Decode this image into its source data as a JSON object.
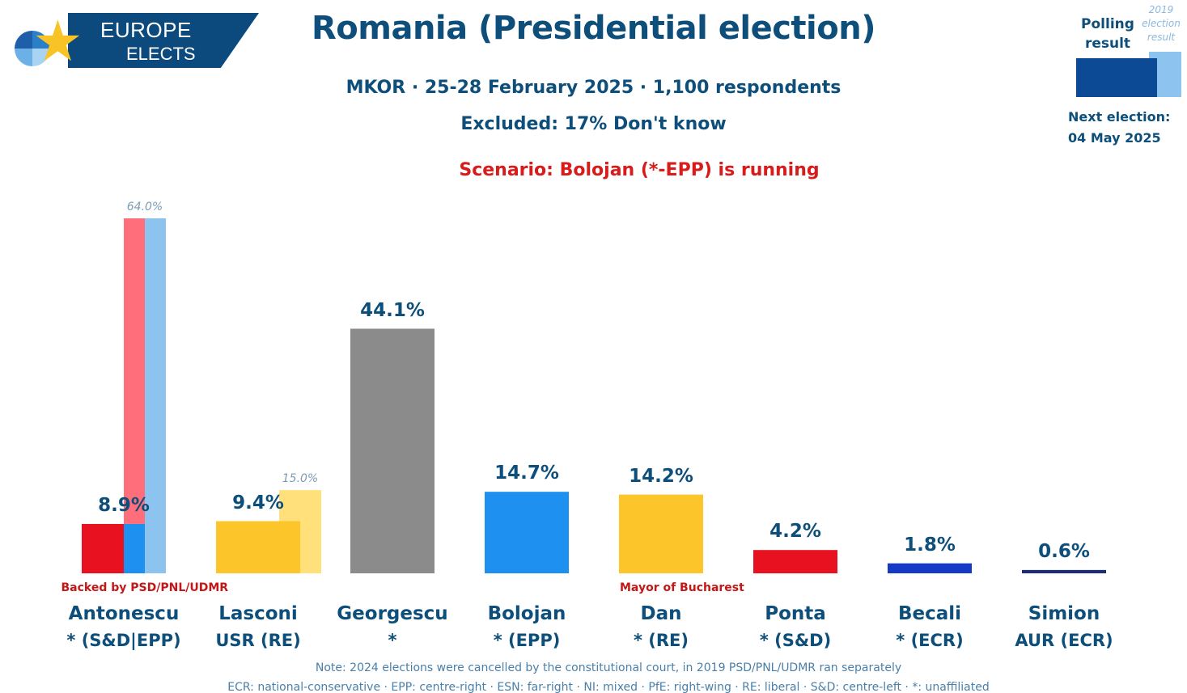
{
  "logo": {
    "line1": "EUROPE",
    "line2": "ELECTS"
  },
  "header": {
    "title": "Romania (Presidential election)",
    "subtitle": "MKOR · 25-28 February 2025 · 1,100 respondents",
    "excluded": "Excluded: 17% Don't know",
    "scenario": "Scenario: Bolojan (*-EPP) is running"
  },
  "legend": {
    "polling_label": "Polling result",
    "prior_label": "2019 election result",
    "next_election_label": "Next election:",
    "next_election_date": "04 May 2025",
    "polling_color": "#0c4a95",
    "prior_color": "#8cc4ef"
  },
  "chart_data": {
    "type": "bar",
    "ylim": [
      0,
      64
    ],
    "categories": [
      "Antonescu",
      "Lasconi",
      "Georgescu",
      "Bolojan",
      "Dan",
      "Ponta",
      "Becali",
      "Simion"
    ],
    "parties": [
      "* (S&D|EPP)",
      "USR (RE)",
      "*",
      "* (EPP)",
      "* (RE)",
      "* (S&D)",
      "* (ECR)",
      "AUR (ECR)"
    ],
    "values": [
      8.9,
      9.4,
      44.1,
      14.7,
      14.2,
      4.2,
      1.8,
      0.6
    ],
    "value_labels": [
      "8.9%",
      "9.4%",
      "44.1%",
      "14.7%",
      "14.2%",
      "4.2%",
      "1.8%",
      "0.6%"
    ],
    "colors": [
      [
        "#e8111f",
        "#1e90f0"
      ],
      [
        "#fcc52a"
      ],
      [
        "#8b8b8b"
      ],
      [
        "#1e90f0"
      ],
      [
        "#fcc52a"
      ],
      [
        "#e8111f"
      ],
      [
        "#1638c6"
      ],
      [
        "#1c2b7a"
      ]
    ],
    "previous": [
      {
        "category": "Antonescu",
        "value": 64.0,
        "label": "64.0%",
        "colors": [
          "#ff6f7b",
          "#8cc4ef"
        ]
      },
      {
        "category": "Lasconi",
        "value": 15.0,
        "label": "15.0%",
        "colors": [
          "#ffe07a"
        ]
      }
    ],
    "annotations": [
      {
        "category": "Antonescu",
        "text": "Backed by PSD/PNL/UDMR"
      },
      {
        "category": "Dan",
        "text": "Mayor of Bucharest"
      }
    ]
  },
  "footer": {
    "note": "Note: 2024 elections were cancelled by the constitutional court, in 2019 PSD/PNL/UDMR ran separately",
    "glossary": "ECR: national-conservative · EPP: centre-right · ESN: far-right · NI: mixed · PfE: right-wing · RE: liberal · S&D: centre-left · *: unaffiliated"
  }
}
